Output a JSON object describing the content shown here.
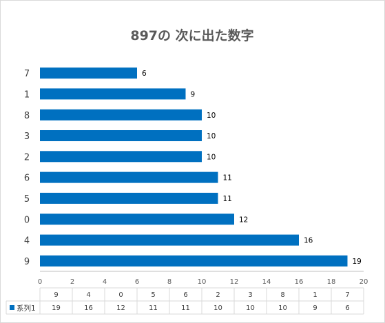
{
  "chart_data": {
    "type": "bar",
    "orientation": "horizontal",
    "title": "897の 次に出た数字",
    "categories": [
      "9",
      "4",
      "0",
      "5",
      "6",
      "2",
      "3",
      "8",
      "1",
      "7"
    ],
    "series": [
      {
        "name": "系列1",
        "values": [
          19,
          16,
          12,
          11,
          11,
          10,
          10,
          10,
          9,
          6
        ]
      }
    ],
    "xlim": [
      0,
      20
    ],
    "xticks": [
      0,
      2,
      4,
      6,
      8,
      10,
      12,
      14,
      16,
      18,
      20
    ],
    "grid": false,
    "legend": "data-table",
    "data_labels": true,
    "colors": {
      "bar": "#0070c0",
      "axis": "#bfbfbf",
      "table_border": "#d9d9d9"
    }
  }
}
